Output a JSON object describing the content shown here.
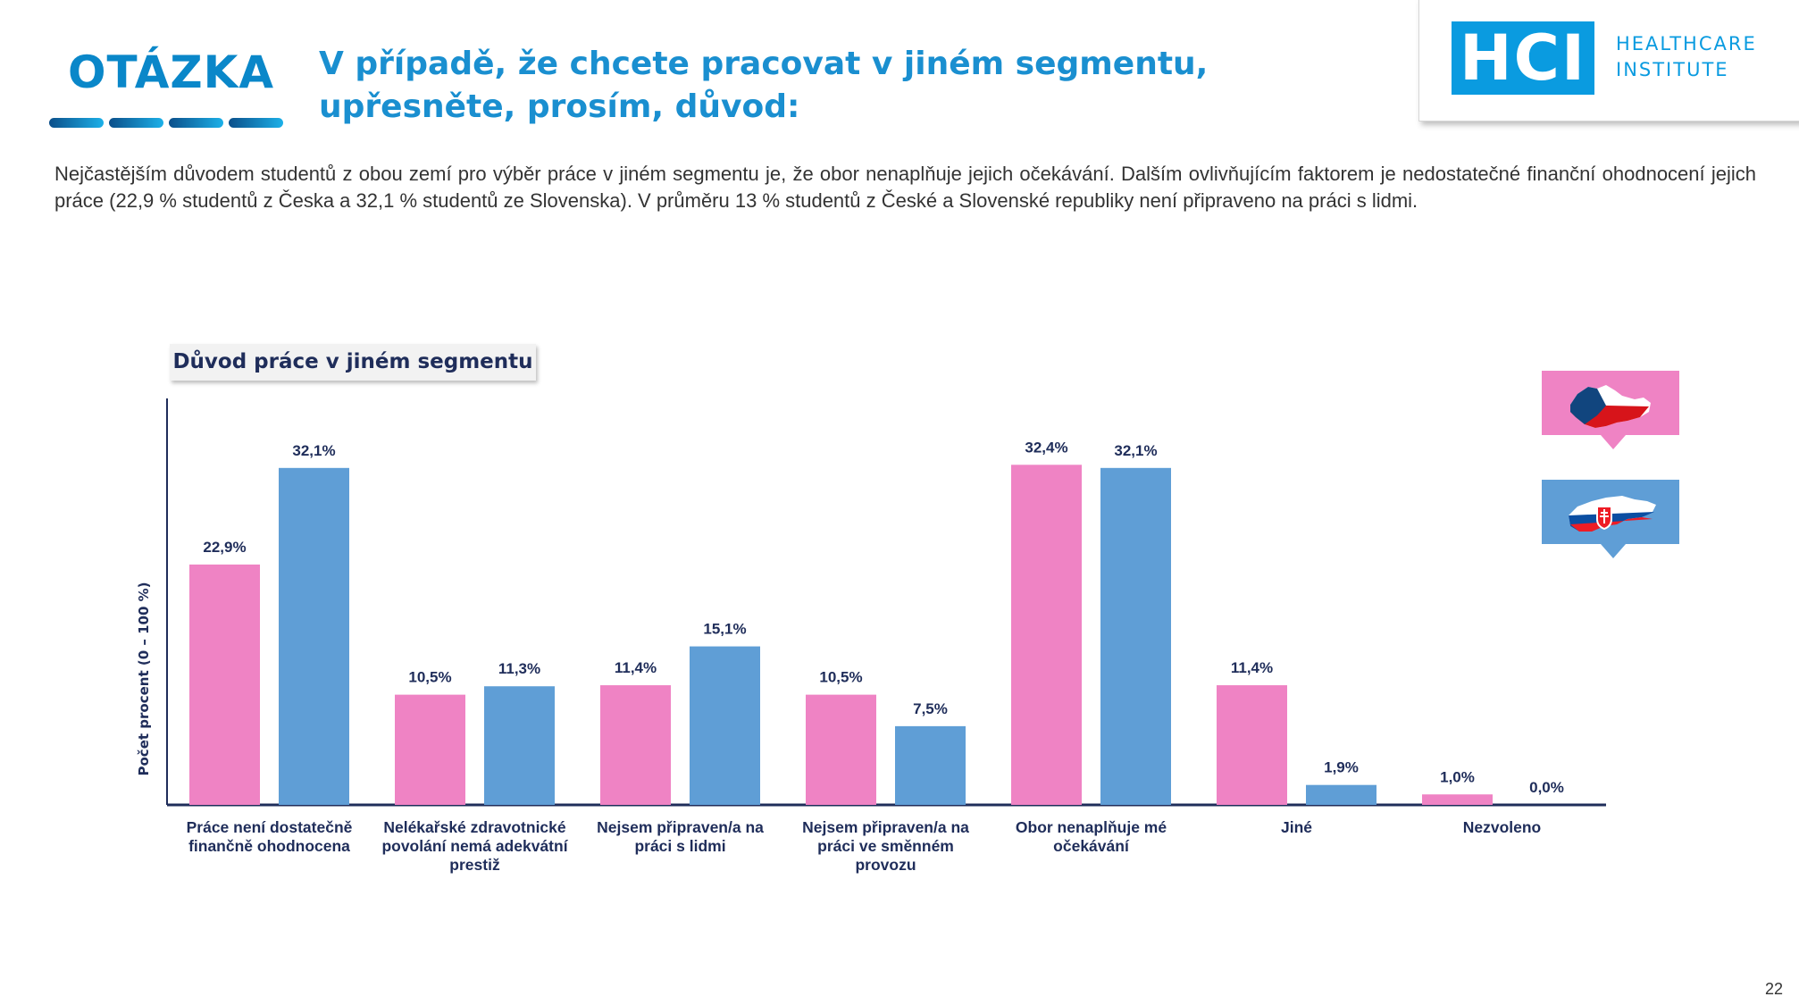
{
  "header": {
    "label": "OTÁZKA",
    "question": "V případě, že chcete pracovat v jiném segmentu, upřesněte, prosím, důvod:"
  },
  "logo": {
    "mark": "HCI",
    "line1": "HEALTHCARE",
    "line2": "INSTITUTE",
    "color": "#0a9be0"
  },
  "intro": "Nejčastějším důvodem studentů z obou zemí pro výběr práce v jiném segmentu je, že obor nenaplňuje jejich očekávání. Dalším ovlivňujícím faktorem je nedostatečné finanční ohodnocení jejich práce (22,9 % studentů z Česka a 32,1 % studentů ze Slovenska). V průměru 13 % studentů z České a Slovenské republiky není připraveno na práci s lidmi.",
  "legend": [
    {
      "icon": "czech-republic-map-icon",
      "color": "#ef83c4"
    },
    {
      "icon": "slovakia-map-icon",
      "color": "#5f9ed6"
    }
  ],
  "chart_data": {
    "type": "bar",
    "title": "Důvod práce v jiném segmentu",
    "ylabel": "Počet procent  (0 – 100 %)",
    "xlabel": "",
    "ylim": [
      0,
      35
    ],
    "grid": false,
    "categories": [
      [
        "Práce není dostatečně",
        "finančně ohodnocena"
      ],
      [
        "Nelékařské zdravotnické",
        "povolání nemá adekvátní",
        "prestiž"
      ],
      [
        "Nejsem připraven/a na",
        "práci s lidmi"
      ],
      [
        "Nejsem připraven/a na",
        "práci ve směnném",
        "provozu"
      ],
      [
        "Obor nenaplňuje mé",
        "očekávání"
      ],
      [
        "Jiné"
      ],
      [
        "Nezvoleno"
      ]
    ],
    "series": [
      {
        "color": "#ef83c4",
        "values": [
          22.9,
          10.5,
          11.4,
          10.5,
          32.4,
          11.4,
          1.0
        ],
        "labels": [
          "22,9%",
          "10,5%",
          "11,4%",
          "10,5%",
          "32,4%",
          "11,4%",
          "1,0%"
        ]
      },
      {
        "color": "#5f9ed6",
        "values": [
          32.1,
          11.3,
          15.1,
          7.5,
          32.1,
          1.9,
          0.0
        ],
        "labels": [
          "32,1%",
          "11,3%",
          "15,1%",
          "7,5%",
          "32,1%",
          "1,9%",
          "0,0%"
        ]
      }
    ]
  },
  "page_number": "22"
}
